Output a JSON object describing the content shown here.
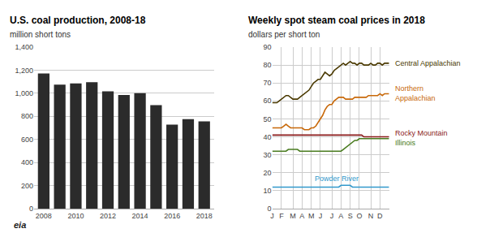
{
  "chart_data": [
    {
      "type": "bar",
      "title": "U.S. coal production, 2008-18",
      "subtitle": "million short tons",
      "categories": [
        "2008",
        null,
        "2010",
        null,
        "2012",
        null,
        "2014",
        null,
        "2016",
        null,
        "2018"
      ],
      "values": [
        1172,
        1075,
        1085,
        1096,
        1016,
        985,
        1000,
        897,
        728,
        775,
        756
      ],
      "color": "#2b2b2b",
      "ylim": [
        0,
        1400
      ],
      "yticks": [
        0,
        200,
        400,
        600,
        800,
        {
          "value": 1000,
          "label": "1,000"
        },
        {
          "value": 1200,
          "label": "1,200"
        },
        {
          "value": 1400,
          "label": "1,400"
        }
      ],
      "grid": true,
      "annotations": [
        "eia"
      ]
    },
    {
      "type": "line",
      "title": "Weekly spot steam coal prices in 2018",
      "subtitle": "dollars per short ton",
      "categories": [
        "J",
        null,
        null,
        null,
        "F",
        null,
        null,
        null,
        null,
        "M",
        null,
        null,
        null,
        "A",
        null,
        null,
        null,
        "M",
        null,
        null,
        null,
        "J",
        null,
        null,
        null,
        null,
        "J",
        null,
        null,
        null,
        "A",
        null,
        null,
        null,
        "S",
        null,
        null,
        null,
        "O",
        null,
        null,
        null,
        null,
        "N",
        null,
        null,
        null,
        "D",
        null,
        null,
        null,
        null
      ],
      "series": [
        {
          "name": "Central Appalachian",
          "color": "#4a3900",
          "values": [
            59,
            59,
            59,
            60,
            61,
            62,
            63,
            63,
            62,
            61,
            61,
            61,
            62,
            63,
            64,
            65,
            66,
            68,
            70,
            71,
            72,
            72,
            74,
            76,
            75,
            74,
            75,
            77,
            78,
            79,
            80,
            81,
            80,
            81,
            82,
            81,
            81,
            80,
            81,
            81,
            80,
            80,
            80,
            81,
            80,
            80,
            81,
            81,
            80,
            81,
            81,
            81
          ]
        },
        {
          "name": "Northern\nAppalachian",
          "color": "#c8690a",
          "values": [
            45,
            45,
            45,
            45,
            45,
            46,
            47,
            46,
            45,
            45,
            45,
            45,
            45,
            45,
            44,
            44,
            44,
            45,
            45,
            46,
            48,
            50,
            52,
            55,
            57,
            58,
            58,
            60,
            61,
            62,
            62,
            62,
            61,
            61,
            61,
            61,
            62,
            62,
            62,
            62,
            62,
            62,
            63,
            63,
            63,
            63,
            63,
            64,
            63,
            64,
            64,
            64
          ]
        },
        {
          "name": "Rocky Mountain",
          "color": "#8b1a1a",
          "values": [
            41,
            41,
            41,
            41,
            41,
            41,
            41,
            41,
            41,
            41,
            41,
            41,
            41,
            41,
            41,
            41,
            41,
            41,
            41,
            41,
            41,
            41,
            41,
            41,
            41,
            41,
            41,
            41,
            41,
            41,
            41,
            41,
            41,
            41,
            41,
            41,
            41,
            41,
            41,
            41,
            40,
            40,
            40,
            40,
            40,
            40,
            40,
            40,
            40,
            40,
            40,
            40
          ]
        },
        {
          "name": "Illinois",
          "color": "#4a7c20",
          "values": [
            32,
            32,
            32,
            32,
            32,
            32,
            32,
            33,
            33,
            33,
            33,
            33,
            32,
            32,
            32,
            32,
            32,
            32,
            32,
            32,
            32,
            32,
            32,
            32,
            32,
            32,
            32,
            32,
            32,
            32,
            32,
            33,
            34,
            35,
            36,
            37,
            38,
            38,
            39,
            39,
            39,
            39,
            39,
            39,
            39,
            39,
            39,
            39,
            39,
            39,
            39,
            39
          ]
        },
        {
          "name": "Powder River",
          "color": "#3399cc",
          "values": [
            12,
            12,
            12,
            12,
            12,
            12,
            12,
            12,
            12,
            12,
            12,
            12,
            12,
            12,
            12,
            12,
            12,
            12,
            12,
            12,
            12,
            12,
            12,
            12,
            12,
            12,
            12,
            12,
            12,
            12,
            13,
            13,
            13,
            13,
            13,
            12,
            12,
            12,
            12,
            12,
            12,
            12,
            12,
            12,
            12,
            12,
            12,
            12,
            12,
            12,
            12,
            12
          ]
        }
      ],
      "ylim": [
        0,
        90
      ],
      "yticks": [
        0,
        10,
        20,
        30,
        40,
        50,
        60,
        70,
        80,
        90
      ],
      "grid": true
    }
  ]
}
